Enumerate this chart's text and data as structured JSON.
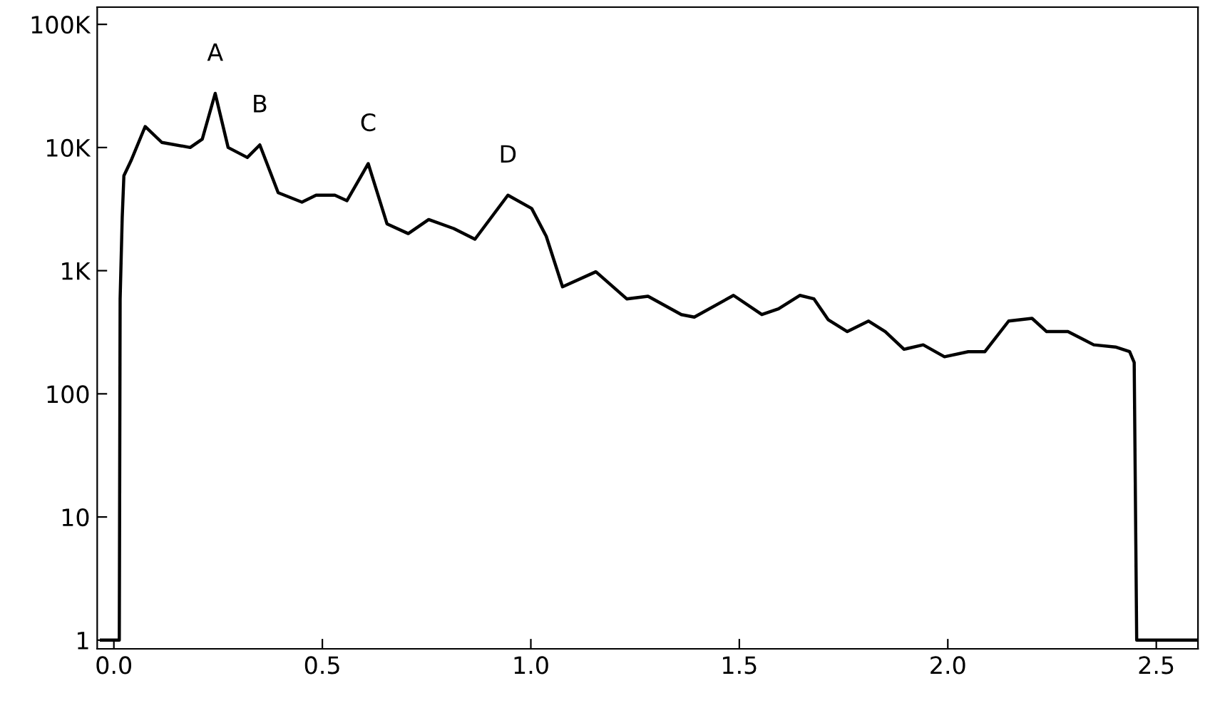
{
  "chart_data": {
    "type": "line",
    "x": [
      -0.03,
      0.01,
      0.013,
      0.015,
      0.02,
      0.024,
      0.041,
      0.075,
      0.115,
      0.183,
      0.212,
      0.243,
      0.274,
      0.32,
      0.35,
      0.394,
      0.451,
      0.485,
      0.53,
      0.559,
      0.61,
      0.655,
      0.706,
      0.755,
      0.815,
      0.866,
      0.945,
      1.002,
      1.037,
      1.076,
      1.156,
      1.23,
      1.281,
      1.361,
      1.392,
      1.486,
      1.554,
      1.594,
      1.645,
      1.679,
      1.713,
      1.759,
      1.81,
      1.85,
      1.895,
      1.941,
      1.992,
      2.049,
      2.089,
      2.146,
      2.202,
      2.237,
      2.288,
      2.35,
      2.402,
      2.436,
      2.447,
      2.453,
      2.6
    ],
    "series": [
      {
        "color": "#000000",
        "values": [
          1,
          1,
          1,
          590,
          2700,
          5900,
          7800,
          14800,
          11000,
          10000,
          11700,
          27500,
          10000,
          8300,
          10500,
          4300,
          3600,
          4100,
          4100,
          3700,
          7400,
          2400,
          2000,
          2600,
          2200,
          1800,
          4100,
          3200,
          1900,
          740,
          980,
          590,
          620,
          440,
          420,
          630,
          440,
          490,
          630,
          590,
          400,
          320,
          390,
          320,
          230,
          250,
          200,
          220,
          220,
          390,
          410,
          320,
          320,
          250,
          240,
          220,
          180,
          1,
          1
        ]
      }
    ],
    "annotations": [
      {
        "text": "A",
        "x": 0.243,
        "y": 27500
      },
      {
        "text": "B",
        "x": 0.35,
        "y": 10500
      },
      {
        "text": "C",
        "x": 0.61,
        "y": 7400
      },
      {
        "text": "D",
        "x": 0.945,
        "y": 4100
      }
    ],
    "log": "y",
    "xlim": [
      -0.04,
      2.6
    ],
    "ylim": [
      0.85,
      138000
    ],
    "xticks": [
      {
        "value": 0,
        "label": "0.0"
      },
      {
        "value": 0.5,
        "label": "0.5"
      },
      {
        "value": 1,
        "label": "1.0"
      },
      {
        "value": 1.5,
        "label": "1.5"
      },
      {
        "value": 2,
        "label": "2.0"
      },
      {
        "value": 2.5,
        "label": "2.5"
      }
    ],
    "yticks": [
      1,
      10,
      100,
      {
        "value": 1000,
        "label": "1K"
      },
      {
        "value": 10000,
        "label": "10K"
      },
      {
        "value": 100000,
        "label": "100K"
      }
    ],
    "grid": false,
    "legend": false
  }
}
